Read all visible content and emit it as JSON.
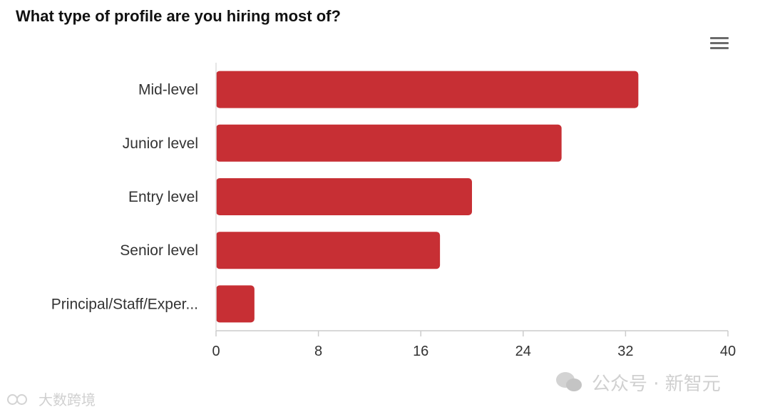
{
  "chart_data": {
    "type": "bar",
    "orientation": "horizontal",
    "title": "What type of profile are you hiring most of?",
    "categories": [
      "Mid-level",
      "Junior level",
      "Entry level",
      "Senior level",
      "Principal/Staff/Exper..."
    ],
    "values": [
      33,
      27,
      20,
      17.5,
      3
    ],
    "xlim": [
      0,
      40
    ],
    "xticks": [
      "0",
      "8",
      "16",
      "24",
      "32",
      "40"
    ],
    "grid": false,
    "bar_color": "#c72f34"
  },
  "toolbar": {
    "menu_icon": "hamburger-menu-icon"
  },
  "watermarks": {
    "wechat_text": "公众号 · 新智元",
    "wechat_icon": "wechat-icon",
    "left_text": "大数跨境",
    "left_icon": "logo-icon"
  }
}
